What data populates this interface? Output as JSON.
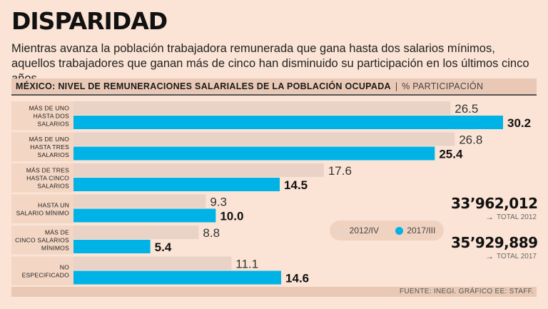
{
  "title": "DISPARIDAD",
  "subtitle": "Mientras avanza la población trabajadora remunerada que gana hasta dos salarios mínimos, aquellos trabajadores que ganan más de cinco han disminuido su participación en los últimos cinco años.",
  "header": {
    "main": "MÉXICO: NIVEL DE REMUNERACIONES SALARIALES DE LA POBLACIÓN OCUPADA",
    "separator": "|",
    "unit": "% PARTICIPACIÓN"
  },
  "colors": {
    "series_2012": "#e8d3c6",
    "series_2017": "#00b3e6"
  },
  "chart_data": {
    "type": "bar",
    "orientation": "horizontal",
    "title": "MÉXICO: NIVEL DE REMUNERACIONES SALARIALES DE LA POBLACIÓN OCUPADA",
    "xlabel": "% PARTICIPACIÓN",
    "xlim": [
      0,
      30.2
    ],
    "categories": [
      [
        "MÁS DE UNO",
        "HASTA DOS",
        "SALARIOS"
      ],
      [
        "MÁS DE UNO",
        "HASTA TRES",
        "SALARIOS"
      ],
      [
        "MÁS DE TRES",
        "HASTA CINCO",
        "SALARIOS"
      ],
      [
        "HASTA UN",
        "SALARIO MÍNIMO"
      ],
      [
        "MÁS DE",
        "CINCO SALARIOS",
        "MÍNIMOS"
      ],
      [
        "NO",
        "ESPECIFICADO"
      ]
    ],
    "series": [
      {
        "name": "2012/IV",
        "values": [
          26.5,
          26.8,
          17.6,
          9.3,
          8.8,
          11.1
        ],
        "labels": [
          "26.5",
          "26.8",
          "17.6",
          "9.3",
          "8.8",
          "11.1"
        ]
      },
      {
        "name": "2017/III",
        "values": [
          30.2,
          25.4,
          14.5,
          10.0,
          5.4,
          14.6
        ],
        "labels": [
          "30.2",
          "25.4",
          "14.5",
          "10.0",
          "5.4",
          "14.6"
        ]
      }
    ],
    "legend": "bottom-right"
  },
  "legend": {
    "item_a": "2012/IV",
    "item_b": "2017/III"
  },
  "totals": [
    {
      "value": "33’962,012",
      "label": "TOTAL 2012"
    },
    {
      "value": "35’929,889",
      "label": "TOTAL 2017"
    }
  ],
  "footer": "FUENTE: INEGI. GRÁFICO EE: STAFF."
}
